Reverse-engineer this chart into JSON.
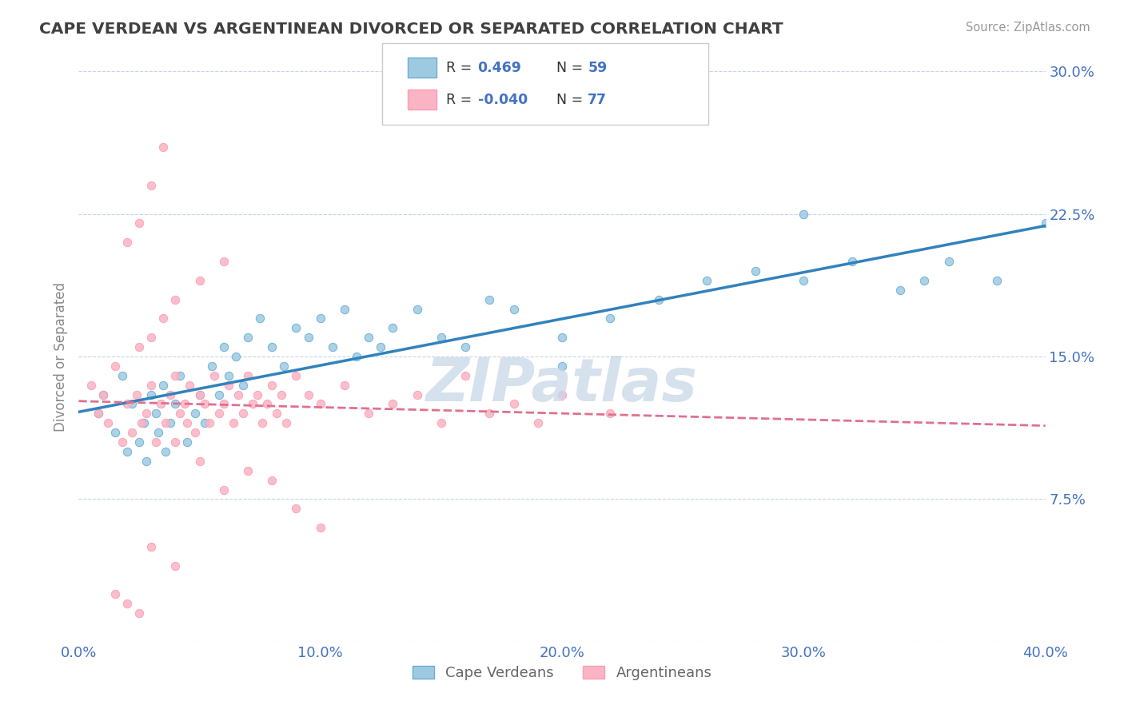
{
  "title": "CAPE VERDEAN VS ARGENTINEAN DIVORCED OR SEPARATED CORRELATION CHART",
  "source_text": "Source: ZipAtlas.com",
  "ylabel": "Divorced or Separated",
  "xlim": [
    0.0,
    0.4
  ],
  "ylim": [
    0.0,
    0.3
  ],
  "xtick_vals": [
    0.0,
    0.1,
    0.2,
    0.3,
    0.4
  ],
  "xtick_labels": [
    "0.0%",
    "10.0%",
    "20.0%",
    "30.0%",
    "40.0%"
  ],
  "ytick_vals": [
    0.0,
    0.075,
    0.15,
    0.225,
    0.3
  ],
  "ytick_labels": [
    "",
    "7.5%",
    "15.0%",
    "22.5%",
    "30.0%"
  ],
  "blue_R": 0.469,
  "blue_N": 59,
  "pink_R": -0.04,
  "pink_N": 77,
  "blue_scatter_color": "#9ecae1",
  "blue_edge_color": "#6baed6",
  "pink_scatter_color": "#fbb4c4",
  "pink_edge_color": "#fc9eb5",
  "blue_line_color": "#3182bd",
  "pink_line_color": "#e07090",
  "watermark_color": "#c8d8e8",
  "title_color": "#404040",
  "tick_label_color": "#4472c4",
  "grid_color": "#c8d4e8",
  "legend_label1": "Cape Verdeans",
  "legend_label2": "Argentineans",
  "blue_scatter_x": [
    0.008,
    0.01,
    0.015,
    0.018,
    0.02,
    0.022,
    0.025,
    0.027,
    0.028,
    0.03,
    0.032,
    0.033,
    0.035,
    0.036,
    0.038,
    0.04,
    0.042,
    0.045,
    0.048,
    0.05,
    0.052,
    0.055,
    0.058,
    0.06,
    0.062,
    0.065,
    0.068,
    0.07,
    0.075,
    0.08,
    0.085,
    0.09,
    0.095,
    0.1,
    0.105,
    0.11,
    0.115,
    0.12,
    0.125,
    0.13,
    0.14,
    0.15,
    0.16,
    0.17,
    0.18,
    0.2,
    0.22,
    0.24,
    0.26,
    0.28,
    0.3,
    0.32,
    0.34,
    0.35,
    0.36,
    0.38,
    0.4,
    0.3,
    0.2
  ],
  "blue_scatter_y": [
    0.12,
    0.13,
    0.11,
    0.14,
    0.1,
    0.125,
    0.105,
    0.115,
    0.095,
    0.13,
    0.12,
    0.11,
    0.135,
    0.1,
    0.115,
    0.125,
    0.14,
    0.105,
    0.12,
    0.13,
    0.115,
    0.145,
    0.13,
    0.155,
    0.14,
    0.15,
    0.135,
    0.16,
    0.17,
    0.155,
    0.145,
    0.165,
    0.16,
    0.17,
    0.155,
    0.175,
    0.15,
    0.16,
    0.155,
    0.165,
    0.175,
    0.16,
    0.155,
    0.18,
    0.175,
    0.16,
    0.17,
    0.18,
    0.19,
    0.195,
    0.19,
    0.2,
    0.185,
    0.19,
    0.2,
    0.19,
    0.22,
    0.225,
    0.145
  ],
  "pink_scatter_x": [
    0.005,
    0.008,
    0.01,
    0.012,
    0.015,
    0.018,
    0.02,
    0.022,
    0.024,
    0.026,
    0.028,
    0.03,
    0.032,
    0.034,
    0.036,
    0.038,
    0.04,
    0.042,
    0.044,
    0.046,
    0.048,
    0.05,
    0.052,
    0.054,
    0.056,
    0.058,
    0.06,
    0.062,
    0.064,
    0.066,
    0.068,
    0.07,
    0.072,
    0.074,
    0.076,
    0.078,
    0.08,
    0.082,
    0.084,
    0.086,
    0.09,
    0.095,
    0.1,
    0.11,
    0.12,
    0.13,
    0.14,
    0.15,
    0.16,
    0.17,
    0.18,
    0.19,
    0.2,
    0.22,
    0.025,
    0.03,
    0.035,
    0.04,
    0.05,
    0.06,
    0.02,
    0.025,
    0.03,
    0.035,
    0.04,
    0.045,
    0.05,
    0.06,
    0.07,
    0.08,
    0.09,
    0.1,
    0.015,
    0.02,
    0.025,
    0.03,
    0.04
  ],
  "pink_scatter_y": [
    0.135,
    0.12,
    0.13,
    0.115,
    0.145,
    0.105,
    0.125,
    0.11,
    0.13,
    0.115,
    0.12,
    0.135,
    0.105,
    0.125,
    0.115,
    0.13,
    0.14,
    0.12,
    0.125,
    0.135,
    0.11,
    0.13,
    0.125,
    0.115,
    0.14,
    0.12,
    0.125,
    0.135,
    0.115,
    0.13,
    0.12,
    0.14,
    0.125,
    0.13,
    0.115,
    0.125,
    0.135,
    0.12,
    0.13,
    0.115,
    0.14,
    0.13,
    0.125,
    0.135,
    0.12,
    0.125,
    0.13,
    0.115,
    0.14,
    0.12,
    0.125,
    0.115,
    0.13,
    0.12,
    0.155,
    0.16,
    0.17,
    0.18,
    0.19,
    0.2,
    0.21,
    0.22,
    0.24,
    0.26,
    0.105,
    0.115,
    0.095,
    0.08,
    0.09,
    0.085,
    0.07,
    0.06,
    0.025,
    0.02,
    0.015,
    0.05,
    0.04
  ]
}
